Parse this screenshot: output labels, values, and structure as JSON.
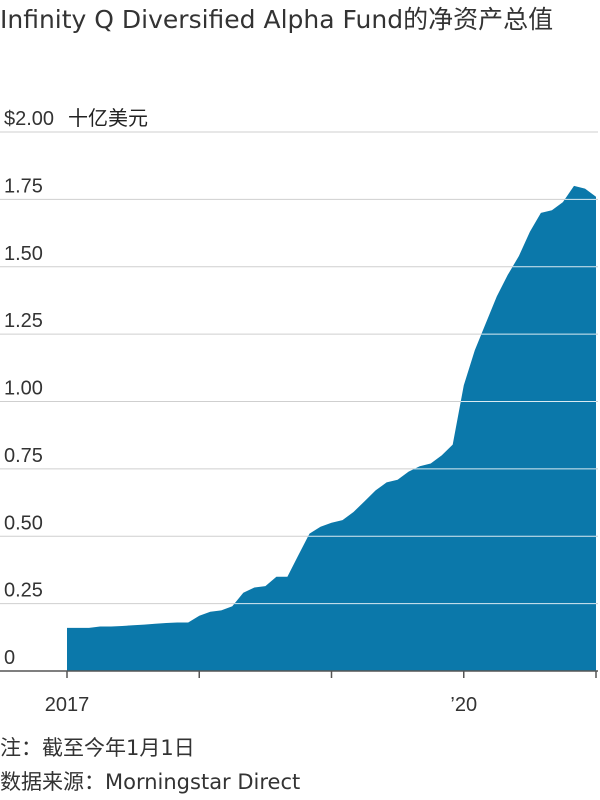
{
  "header": {
    "title": "Infinity Q Diversified Alpha Fund的净资产总值"
  },
  "chart_data": {
    "type": "area",
    "unit_label": "十亿美元",
    "y_tick_labels": [
      "$2.00",
      "1.75",
      "1.50",
      "1.25",
      "1.00",
      "0.75",
      "0.50",
      "0.25",
      "0"
    ],
    "y_ticks": [
      2.0,
      1.75,
      1.5,
      1.25,
      1.0,
      0.75,
      0.5,
      0.25,
      0
    ],
    "x_tick_labels": [
      "2017",
      "’20"
    ],
    "x_ticks": [
      "2017-01",
      "2020-01"
    ],
    "ylim": [
      0,
      2.0
    ],
    "xlim": [
      "2017-01",
      "2021-01"
    ],
    "grid": true,
    "color": "#0b78aa",
    "series": [
      {
        "x": [
          "2017-01",
          "2017-02",
          "2017-03",
          "2017-04",
          "2017-05",
          "2017-06",
          "2017-07",
          "2017-08",
          "2017-09",
          "2017-10",
          "2017-11",
          "2017-12",
          "2018-01",
          "2018-02",
          "2018-03",
          "2018-04",
          "2018-05",
          "2018-06",
          "2018-07",
          "2018-08",
          "2018-09",
          "2018-10",
          "2018-11",
          "2018-12",
          "2019-01",
          "2019-02",
          "2019-03",
          "2019-04",
          "2019-05",
          "2019-06",
          "2019-07",
          "2019-08",
          "2019-09",
          "2019-10",
          "2019-11",
          "2019-12",
          "2020-01",
          "2020-02",
          "2020-03",
          "2020-04",
          "2020-05",
          "2020-06",
          "2020-07",
          "2020-08",
          "2020-09",
          "2020-10",
          "2020-11",
          "2020-12",
          "2021-01"
        ],
        "values": [
          0.16,
          0.16,
          0.16,
          0.165,
          0.165,
          0.167,
          0.17,
          0.172,
          0.175,
          0.178,
          0.18,
          0.18,
          0.205,
          0.22,
          0.225,
          0.24,
          0.29,
          0.31,
          0.315,
          0.35,
          0.35,
          0.43,
          0.51,
          0.535,
          0.55,
          0.56,
          0.59,
          0.63,
          0.67,
          0.7,
          0.71,
          0.74,
          0.76,
          0.77,
          0.8,
          0.84,
          1.06,
          1.19,
          1.29,
          1.39,
          1.47,
          1.54,
          1.63,
          1.7,
          1.71,
          1.74,
          1.8,
          1.79,
          1.76
        ]
      }
    ]
  },
  "footer": {
    "note": "注：截至今年1月1日",
    "source": "数据来源：Morningstar Direct"
  }
}
